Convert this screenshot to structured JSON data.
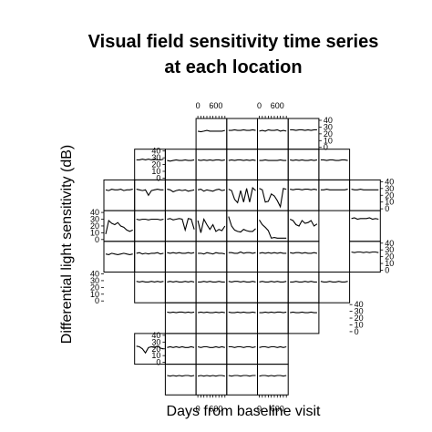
{
  "chart_data": {
    "type": "line",
    "title": "Visual field sensitivity time series at each location",
    "title_lines": [
      "Visual field sensitivity time series",
      "at each location"
    ],
    "xlabel": "Days from baseline visit",
    "ylabel": "Differential light sensitivity (dB)",
    "x_ticks": [
      0,
      600
    ],
    "y_ticks": [
      0,
      10,
      20,
      30,
      40
    ],
    "x": [
      0,
      100,
      200,
      300,
      400,
      500,
      600,
      700,
      800,
      900
    ],
    "xlim": [
      0,
      900
    ],
    "ylim": [
      0,
      40
    ],
    "grid": "visual field layout, 10 rows",
    "rows": [
      {
        "row": 1,
        "cells": [
          {
            "col": 3,
            "values": [
              24,
              23,
              24,
              25,
              24,
              24,
              24,
              24,
              24,
              25
            ]
          },
          {
            "col": 4,
            "values": [
              25,
              25,
              26,
              25,
              25,
              26,
              25,
              25,
              26,
              25
            ]
          },
          {
            "col": 5,
            "values": [
              24,
              25,
              24,
              26,
              25,
              25,
              26,
              24,
              25,
              24
            ]
          },
          {
            "col": 6,
            "values": [
              26,
              26,
              25,
              26,
              26,
              25,
              26,
              25,
              26,
              26
            ]
          }
        ]
      },
      {
        "row": 2,
        "cells": [
          {
            "col": 1,
            "values": [
              27,
              27,
              28,
              27,
              28,
              27,
              28,
              27,
              27,
              28
            ]
          },
          {
            "col": 2,
            "values": [
              26,
              25,
              26,
              27,
              26,
              26,
              27,
              26,
              26,
              27
            ]
          },
          {
            "col": 3,
            "values": [
              27,
              26,
              27,
              26,
              27,
              26,
              27,
              27,
              26,
              27
            ]
          },
          {
            "col": 4,
            "values": [
              26,
              27,
              26,
              27,
              27,
              26,
              27,
              26,
              27,
              26
            ]
          },
          {
            "col": 5,
            "values": [
              26,
              26,
              27,
              26,
              26,
              26,
              26,
              27,
              26,
              26
            ]
          },
          {
            "col": 6,
            "values": [
              27,
              26,
              27,
              26,
              27,
              26,
              26,
              27,
              26,
              27
            ]
          },
          {
            "col": 7,
            "values": [
              27,
              27,
              26,
              27,
              27,
              26,
              26,
              27,
              27,
              26
            ]
          }
        ]
      },
      {
        "row": 3,
        "cells": [
          {
            "col": 0,
            "values": [
              28,
              27,
              29,
              28,
              28,
              29,
              27,
              28,
              28,
              29
            ]
          },
          {
            "col": 1,
            "values": [
              29,
              28,
              27,
              28,
              20,
              27,
              28,
              29,
              28,
              28
            ]
          },
          {
            "col": 2,
            "values": [
              29,
              28,
              25,
              27,
              28,
              27,
              28,
              26,
              27,
              28
            ]
          },
          {
            "col": 3,
            "values": [
              28,
              29,
              26,
              28,
              27,
              26,
              28,
              29,
              27,
              28
            ]
          },
          {
            "col": 4,
            "values": [
              29,
              27,
              14,
              9,
              27,
              10,
              30,
              10,
              31,
              27
            ]
          },
          {
            "col": 5,
            "values": [
              30,
              28,
              10,
              11,
              22,
              19,
              12,
              3,
              30,
              29
            ]
          },
          {
            "col": 6,
            "values": [
              29,
              28,
              29,
              29,
              28,
              29,
              29,
              28,
              29,
              28
            ]
          },
          {
            "col": 7,
            "values": [
              28,
              28,
              29,
              28,
              28,
              28,
              28,
              28,
              28,
              29
            ]
          },
          {
            "col": 8,
            "values": [
              29,
              28,
              28,
              29,
              28,
              28,
              28,
              28,
              28,
              28
            ]
          }
        ]
      },
      {
        "row": 4,
        "cells": [
          {
            "col": 0,
            "values": [
              8,
              28,
              24,
              22,
              25,
              20,
              18,
              14,
              12,
              14
            ]
          },
          {
            "col": 1,
            "values": [
              30,
              29,
              30,
              30,
              29,
              30,
              30,
              30,
              29,
              30
            ]
          },
          {
            "col": 2,
            "values": [
              30,
              31,
              29,
              30,
              31,
              30,
              14,
              31,
              30,
              15
            ]
          },
          {
            "col": 3,
            "values": [
              28,
              10,
              30,
              22,
              15,
              22,
              12,
              15,
              13,
              20
            ]
          },
          {
            "col": 4,
            "values": [
              34,
              20,
              14,
              12,
              11,
              15,
              13,
              12,
              12,
              16
            ]
          },
          {
            "col": 5,
            "values": [
              29,
              22,
              18,
              13,
              2,
              3,
              2,
              2,
              2,
              2
            ]
          },
          {
            "col": 6,
            "values": [
              30,
              28,
              22,
              20,
              28,
              24,
              25,
              28,
              20,
              23
            ]
          },
          {
            "col": 8,
            "values": [
              31,
              32,
              30,
              31,
              31,
              31,
              32,
              30,
              31,
              30
            ]
          }
        ]
      },
      {
        "row": 5,
        "cells": [
          {
            "col": 0,
            "values": [
              24,
              23,
              25,
              24,
              23,
              24,
              25,
              24,
              23,
              24
            ]
          },
          {
            "col": 1,
            "values": [
              25,
              26,
              24,
              25,
              24,
              25,
              25,
              26,
              24,
              25
            ]
          },
          {
            "col": 2,
            "values": [
              26,
              25,
              26,
              25,
              26,
              25,
              25,
              26,
              25,
              26
            ]
          },
          {
            "col": 3,
            "values": [
              25,
              25,
              24,
              26,
              25,
              24,
              26,
              25,
              25,
              24
            ]
          },
          {
            "col": 4,
            "values": [
              26,
              26,
              25,
              25,
              27,
              25,
              26,
              26,
              25,
              26
            ]
          },
          {
            "col": 5,
            "values": [
              25,
              26,
              25,
              26,
              25,
              26,
              25,
              26,
              25,
              25
            ]
          },
          {
            "col": 6,
            "values": [
              26,
              25,
              26,
              26,
              25,
              26,
              25,
              25,
              26,
              25
            ]
          },
          {
            "col": 8,
            "values": [
              27,
              26,
              27,
              27,
              26,
              27,
              26,
              27,
              27,
              26
            ]
          }
        ]
      },
      {
        "row": 6,
        "cells": [
          {
            "col": 1,
            "values": [
              29,
              28,
              29,
              28,
              28,
              29,
              28,
              29,
              28,
              29
            ]
          },
          {
            "col": 2,
            "values": [
              28,
              29,
              28,
              29,
              28,
              28,
              29,
              28,
              29,
              28
            ]
          },
          {
            "col": 3,
            "values": [
              28,
              28,
              29,
              28,
              29,
              28,
              28,
              29,
              28,
              28
            ]
          },
          {
            "col": 4,
            "values": [
              29,
              28,
              29,
              29,
              28,
              29,
              28,
              28,
              29,
              28
            ]
          },
          {
            "col": 5,
            "values": [
              28,
              29,
              28,
              28,
              29,
              28,
              29,
              28,
              28,
              29
            ]
          },
          {
            "col": 6,
            "values": [
              28,
              28,
              29,
              28,
              28,
              29,
              28,
              29,
              28,
              28
            ]
          },
          {
            "col": 7,
            "values": [
              29,
              28,
              28,
              29,
              28,
              28,
              29,
              28,
              28,
              29
            ]
          }
        ]
      },
      {
        "row": 7,
        "cells": [
          {
            "col": 2,
            "values": [
              29,
              28,
              29,
              28,
              29,
              29,
              28,
              29,
              28,
              29
            ]
          },
          {
            "col": 3,
            "values": [
              28,
              29,
              28,
              29,
              28,
              28,
              29,
              28,
              29,
              28
            ]
          },
          {
            "col": 4,
            "values": [
              29,
              28,
              28,
              29,
              28,
              29,
              28,
              28,
              29,
              28
            ]
          },
          {
            "col": 5,
            "values": [
              28,
              28,
              29,
              28,
              29,
              28,
              29,
              29,
              28,
              29
            ]
          },
          {
            "col": 6,
            "values": [
              28,
              29,
              28,
              28,
              29,
              28,
              28,
              29,
              28,
              28
            ]
          }
        ]
      },
      {
        "row": 8,
        "cells": [
          {
            "col": 1,
            "values": [
              24,
              23,
              20,
              14,
              22,
              23,
              22,
              24,
              21,
              20
            ]
          },
          {
            "col": 2,
            "values": [
              22,
              23,
              22,
              23,
              22,
              23,
              22,
              22,
              23,
              22
            ]
          },
          {
            "col": 3,
            "values": [
              23,
              22,
              23,
              23,
              22,
              22,
              23,
              22,
              23,
              22
            ]
          },
          {
            "col": 4,
            "values": [
              23,
              23,
              22,
              23,
              23,
              22,
              23,
              23,
              22,
              23
            ]
          },
          {
            "col": 5,
            "values": [
              22,
              23,
              23,
              22,
              23,
              23,
              22,
              23,
              22,
              23
            ]
          }
        ]
      },
      {
        "row": 9,
        "cells": [
          {
            "col": 2,
            "values": [
              26,
              25,
              26,
              25,
              26,
              25,
              26,
              26,
              25,
              26
            ]
          },
          {
            "col": 3,
            "values": [
              25,
              26,
              25,
              26,
              25,
              26,
              25,
              26,
              26,
              25
            ]
          },
          {
            "col": 4,
            "values": [
              26,
              25,
              26,
              26,
              25,
              26,
              26,
              25,
              26,
              26
            ]
          },
          {
            "col": 5,
            "values": [
              25,
              26,
              26,
              25,
              26,
              25,
              26,
              26,
              25,
              26
            ]
          }
        ]
      }
    ]
  }
}
